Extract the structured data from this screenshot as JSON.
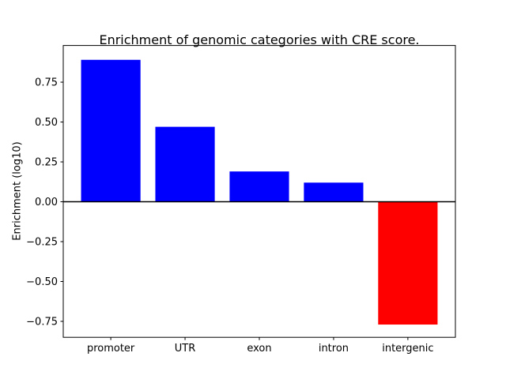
{
  "chart_data": {
    "type": "bar",
    "title": "Enrichment of genomic categories with CRE score.",
    "xlabel": "",
    "ylabel": "Enrichment (log10)",
    "categories": [
      "promoter",
      "UTR",
      "exon",
      "intron",
      "intergenic"
    ],
    "values": [
      0.89,
      0.47,
      0.19,
      0.12,
      -0.77
    ],
    "bar_colors": [
      "#0000ff",
      "#0000ff",
      "#0000ff",
      "#0000ff",
      "#ff0000"
    ],
    "ylim": [
      -0.85,
      0.98
    ],
    "yticks": [
      -0.75,
      -0.5,
      -0.25,
      0,
      0.25,
      0.5,
      0.75
    ],
    "zero_line": true,
    "grid": false,
    "legend": null,
    "colors": {
      "positive_bar": "#0000ff",
      "negative_bar": "#ff0000",
      "axis": "#000000",
      "background": "#ffffff"
    }
  }
}
